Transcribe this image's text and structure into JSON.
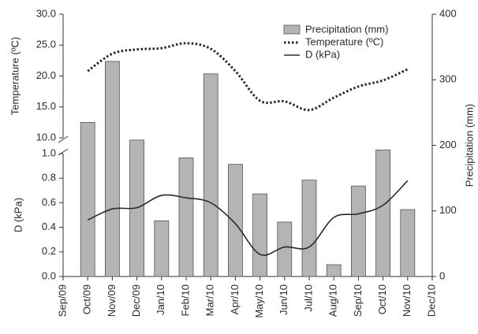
{
  "chart_data": {
    "type": "combo",
    "categories": [
      "Sep/09",
      "Oct/09",
      "Nov/09",
      "Dec/09",
      "Jan/10",
      "Feb/10",
      "Mar/10",
      "Apr/10",
      "May/10",
      "Jun/10",
      "Jul/10",
      "Aug/10",
      "Sep/10",
      "Oct/10",
      "Nov/10",
      "Dec/10"
    ],
    "ylabel": "D (kPa)",
    "ylim": [
      0,
      1.0
    ],
    "yticks": [
      {
        "value": 0,
        "label": "0.0"
      },
      {
        "value": 0.2,
        "label": "0.2"
      },
      {
        "value": 0.4,
        "label": "0.4"
      },
      {
        "value": 0.6,
        "label": "0.6"
      },
      {
        "value": 0.8,
        "label": "0.8"
      },
      {
        "value": 1.0,
        "label": "1.0"
      }
    ],
    "ytop_label": "Temperature (ºC)",
    "ytop_lim": [
      10,
      30
    ],
    "ytop_ticks": [
      {
        "value": 10,
        "label": "10.0"
      },
      {
        "value": 15,
        "label": "15.0"
      },
      {
        "value": 20,
        "label": "20.0"
      },
      {
        "value": 25,
        "label": "25.0"
      },
      {
        "value": 30,
        "label": "30.0"
      }
    ],
    "y2label": "Precipitation (mm)",
    "y2lim": [
      0,
      400
    ],
    "y2ticks": [
      0,
      100,
      200,
      300,
      400
    ],
    "legend": "top-right",
    "series": [
      {
        "name": "Precipitation (mm)",
        "type": "bar",
        "axis": "y2",
        "color": "#b4b4b4",
        "values": [
          null,
          235,
          328,
          208,
          85,
          181,
          309,
          171,
          126,
          83,
          147,
          18,
          138,
          193,
          102,
          null
        ]
      },
      {
        "name": "Temperature (ºC)",
        "type": "dotted-line",
        "axis": "ytop",
        "color": "#2a2a2a",
        "values": [
          null,
          20.8,
          23.6,
          24.3,
          24.5,
          25.3,
          24.4,
          20.8,
          16.0,
          15.9,
          14.5,
          16.5,
          18.3,
          19.3,
          21.1,
          null
        ]
      },
      {
        "name": "D (kPa)",
        "type": "line",
        "axis": "y",
        "color": "#2a2a2a",
        "values": [
          null,
          0.46,
          0.55,
          0.56,
          0.66,
          0.64,
          0.6,
          0.43,
          0.18,
          0.24,
          0.24,
          0.48,
          0.51,
          0.58,
          0.78,
          null
        ]
      }
    ]
  }
}
